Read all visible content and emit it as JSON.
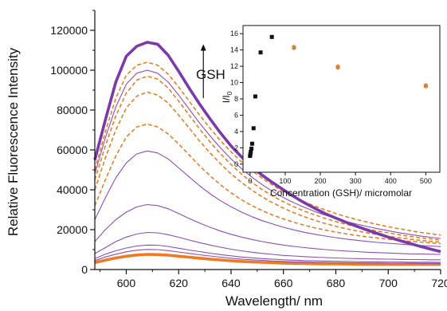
{
  "chart_data": [
    {
      "type": "line",
      "title": "",
      "xlabel": "Wavelength/ nm",
      "ylabel": "Relative Fluorescence Intensity",
      "xlim": [
        588,
        720
      ],
      "ylim": [
        0,
        130000
      ],
      "x_ticks": [
        600,
        620,
        640,
        660,
        680,
        700,
        720
      ],
      "x_tick_labels": [
        "600",
        "620",
        "640",
        "660",
        "680",
        "700",
        "720"
      ],
      "y_ticks": [
        0,
        20000,
        40000,
        60000,
        80000,
        100000,
        120000
      ],
      "y_tick_labels": [
        "0",
        "20000",
        "40000",
        "60000",
        "80000",
        "100000",
        "120000"
      ],
      "grid": false,
      "annotation": {
        "text": "GSH",
        "meaning": "arrow pointing up: intensity increases with GSH",
        "at_x": 627,
        "arrow_from_y": 86000,
        "arrow_to_y": 113000
      },
      "x": [
        588,
        592,
        596,
        600,
        604,
        608,
        612,
        616,
        620,
        624,
        628,
        632,
        636,
        640,
        644,
        648,
        652,
        656,
        660,
        664,
        668,
        672,
        676,
        680,
        684,
        688,
        692,
        696,
        700,
        704,
        708,
        712,
        716,
        720
      ],
      "series": [
        {
          "style": "thick-orange",
          "values": [
            3500,
            4700,
            5800,
            6700,
            7300,
            7600,
            7500,
            7200,
            6700,
            6200,
            5700,
            5200,
            4800,
            4400,
            4100,
            3800,
            3600,
            3400,
            3200,
            3100,
            3000,
            2900,
            2850,
            2800,
            2750,
            2700,
            2700,
            2650,
            2650,
            2600,
            2600,
            2600,
            2600,
            2600
          ]
        },
        {
          "style": "thin-purple",
          "values": [
            4500,
            6300,
            7700,
            8900,
            9700,
            10100,
            10000,
            9500,
            8800,
            8100,
            7400,
            6800,
            6200,
            5700,
            5200,
            4900,
            4600,
            4300,
            4100,
            3900,
            3800,
            3700,
            3600,
            3500,
            3400,
            3400,
            3300,
            3300,
            3200,
            3200,
            3200,
            3100,
            3100,
            3100
          ]
        },
        {
          "style": "thin-purple",
          "values": [
            5500,
            7700,
            9400,
            10800,
            11800,
            12300,
            12200,
            11600,
            10700,
            9800,
            9000,
            8200,
            7500,
            6900,
            6300,
            5900,
            5500,
            5200,
            4900,
            4700,
            4500,
            4400,
            4300,
            4200,
            4100,
            4000,
            3900,
            3900,
            3800,
            3800,
            3700,
            3700,
            3700,
            3600
          ]
        },
        {
          "style": "thin-purple",
          "values": [
            8000,
            11000,
            14000,
            16300,
            17800,
            18600,
            18400,
            17500,
            16200,
            14800,
            13500,
            12300,
            11200,
            10200,
            9400,
            8700,
            8100,
            7600,
            7100,
            6800,
            6500,
            6200,
            6000,
            5800,
            5600,
            5500,
            5400,
            5300,
            5200,
            5100,
            5000,
            5000,
            4900,
            4900
          ]
        },
        {
          "style": "thin-purple",
          "values": [
            14000,
            20000,
            25000,
            28800,
            31400,
            32600,
            32100,
            30500,
            28100,
            25600,
            23300,
            21200,
            19300,
            17700,
            16300,
            15100,
            14000,
            13100,
            12300,
            11600,
            11000,
            10500,
            10000,
            9600,
            9300,
            9000,
            8700,
            8500,
            8300,
            8100,
            7900,
            7800,
            7700,
            7600
          ]
        },
        {
          "style": "thin-purple",
          "values": [
            25000,
            36000,
            46000,
            53500,
            58000,
            59500,
            58500,
            55500,
            51000,
            46500,
            42000,
            38000,
            34500,
            31500,
            28800,
            26500,
            24500,
            22800,
            21200,
            19900,
            18700,
            17700,
            16800,
            16000,
            15300,
            14700,
            14100,
            13600,
            13200,
            12800,
            12400,
            12100,
            11800,
            11500
          ]
        },
        {
          "style": "dashed-orange",
          "values": [
            32000,
            45000,
            57000,
            66500,
            71500,
            73000,
            71500,
            68000,
            63000,
            57500,
            52000,
            47000,
            42500,
            38500,
            35000,
            32000,
            29500,
            27300,
            25400,
            23700,
            22200,
            20900,
            19800,
            18800,
            17900,
            17100,
            16400,
            15800,
            15200,
            14700,
            14200,
            13800,
            13400,
            13000
          ]
        },
        {
          "style": "dashed-orange",
          "values": [
            40000,
            56000,
            70000,
            81000,
            87000,
            89000,
            87500,
            83500,
            77500,
            71000,
            64500,
            58500,
            53000,
            48000,
            43700,
            39800,
            36400,
            33400,
            30800,
            28500,
            26500,
            24700,
            23100,
            21700,
            20500,
            19400,
            18400,
            17500,
            16700,
            16000,
            15300,
            14700,
            14200,
            13700
          ]
        },
        {
          "style": "dashed-orange",
          "values": [
            45000,
            62000,
            77000,
            88500,
            95000,
            97000,
            95500,
            91000,
            84500,
            77500,
            70500,
            64000,
            58000,
            52700,
            47900,
            43700,
            40000,
            36800,
            34000,
            31500,
            29300,
            27400,
            25600,
            24100,
            22700,
            21400,
            20300,
            19300,
            18400,
            17500,
            16700,
            16000,
            15400,
            14800
          ]
        },
        {
          "style": "thin-purple",
          "values": [
            48000,
            66000,
            81500,
            93000,
            98500,
            100000,
            98500,
            94000,
            87500,
            80500,
            73500,
            67000,
            61000,
            55500,
            50600,
            46300,
            42500,
            39100,
            36100,
            33500,
            31200,
            29100,
            27300,
            25600,
            24100,
            22800,
            21600,
            20500,
            19500,
            18500,
            17700,
            16900,
            16200,
            15600
          ]
        },
        {
          "style": "dashed-orange",
          "values": [
            50000,
            69000,
            86000,
            97500,
            102500,
            104000,
            102500,
            98000,
            91500,
            84500,
            77500,
            70800,
            64600,
            59000,
            54000,
            49600,
            45700,
            42200,
            39100,
            36400,
            34000,
            31800,
            29900,
            28100,
            26500,
            25100,
            23800,
            22600,
            21500,
            20500,
            19600,
            18700,
            18000,
            17300
          ]
        },
        {
          "style": "thick-purple",
          "values": [
            55000,
            75000,
            94000,
            107000,
            112000,
            114000,
            113000,
            107500,
            99500,
            91000,
            83000,
            75500,
            68500,
            62000,
            56500,
            51500,
            47200,
            43500,
            40000,
            36600,
            33500,
            30700,
            28000,
            25800,
            23700,
            21700,
            19800,
            18000,
            16300,
            14700,
            13200,
            11700,
            10300,
            9000
          ]
        }
      ]
    },
    {
      "type": "scatter",
      "title": "",
      "xlabel": "Concentration (GSH)/ micromolar",
      "ylabel": "I/I0",
      "xlim": [
        -20,
        540
      ],
      "ylim": [
        -1,
        17
      ],
      "x_ticks": [
        0,
        100,
        200,
        300,
        400,
        500
      ],
      "x_tick_labels": [
        "0",
        "100",
        "200",
        "300",
        "400",
        "500"
      ],
      "y_ticks": [
        0,
        2,
        4,
        6,
        8,
        10,
        12,
        14,
        16
      ],
      "y_tick_labels": [
        "0",
        "2",
        "4",
        "6",
        "8",
        "10",
        "12",
        "14",
        "16"
      ],
      "series": [
        {
          "color": "#111111",
          "points": [
            [
              0,
              1.0
            ],
            [
              1,
              1.2
            ],
            [
              2,
              1.5
            ],
            [
              4,
              1.9
            ],
            [
              6,
              2.5
            ],
            [
              10,
              4.4
            ],
            [
              15,
              8.3
            ],
            [
              30,
              13.7
            ],
            [
              62,
              15.6
            ]
          ]
        },
        {
          "color": "#d9822b",
          "points": [
            [
              125,
              14.3
            ],
            [
              250,
              11.9
            ],
            [
              500,
              9.6
            ]
          ]
        }
      ]
    }
  ]
}
